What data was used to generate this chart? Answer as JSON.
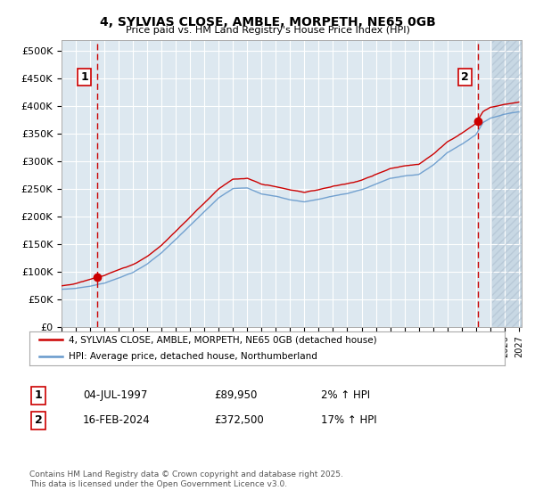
{
  "title": "4, SYLVIAS CLOSE, AMBLE, MORPETH, NE65 0GB",
  "subtitle": "Price paid vs. HM Land Registry's House Price Index (HPI)",
  "ylim": [
    0,
    520000
  ],
  "yticks": [
    0,
    50000,
    100000,
    150000,
    200000,
    250000,
    300000,
    350000,
    400000,
    450000,
    500000
  ],
  "ytick_labels": [
    "£0",
    "£50K",
    "£100K",
    "£150K",
    "£200K",
    "£250K",
    "£300K",
    "£350K",
    "£400K",
    "£450K",
    "£500K"
  ],
  "xlim_start": 1995.3,
  "xlim_end": 2027.2,
  "sale1_date": 1997.5,
  "sale1_price": 89950,
  "sale1_label": "1",
  "sale2_date": 2024.12,
  "sale2_price": 372500,
  "sale2_label": "2",
  "legend_line1": "4, SYLVIAS CLOSE, AMBLE, MORPETH, NE65 0GB (detached house)",
  "legend_line2": "HPI: Average price, detached house, Northumberland",
  "table_row1": [
    "1",
    "04-JUL-1997",
    "£89,950",
    "2% ↑ HPI"
  ],
  "table_row2": [
    "2",
    "16-FEB-2024",
    "£372,500",
    "17% ↑ HPI"
  ],
  "footnote": "Contains HM Land Registry data © Crown copyright and database right 2025.\nThis data is licensed under the Open Government Licence v3.0.",
  "line_color_red": "#cc0000",
  "line_color_blue": "#6699cc",
  "bg_chart": "#dde8f0",
  "bg_color": "#ffffff",
  "grid_color": "#ffffff",
  "hatch_start": 2025.12
}
